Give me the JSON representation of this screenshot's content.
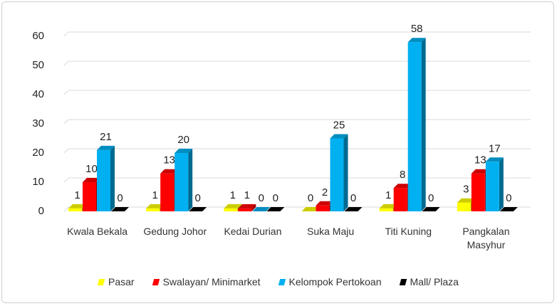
{
  "chart_data": {
    "type": "bar3d",
    "categories": [
      "Kwala Bekala",
      "Gedung Johor",
      "Kedai Durian",
      "Suka Maju",
      "Titi Kuning",
      "Pangkalan Masyhur"
    ],
    "series": [
      {
        "name": "Pasar",
        "color": "#ffff00",
        "values": [
          1,
          1,
          1,
          0,
          1,
          3
        ]
      },
      {
        "name": "Swalayan/ Minimarket",
        "color": "#ff0000",
        "values": [
          10,
          13,
          1,
          2,
          8,
          13
        ]
      },
      {
        "name": "Kelompok Pertokoan",
        "color": "#00b0f0",
        "values": [
          21,
          20,
          0,
          25,
          58,
          17
        ]
      },
      {
        "name": "Mall/ Plaza",
        "color": "#000000",
        "values": [
          0,
          0,
          0,
          0,
          0,
          0
        ]
      }
    ],
    "ylim": [
      0,
      60
    ],
    "yticks": [
      0,
      10,
      20,
      30,
      40,
      50,
      60
    ],
    "grid": true,
    "legend": "bottom"
  }
}
